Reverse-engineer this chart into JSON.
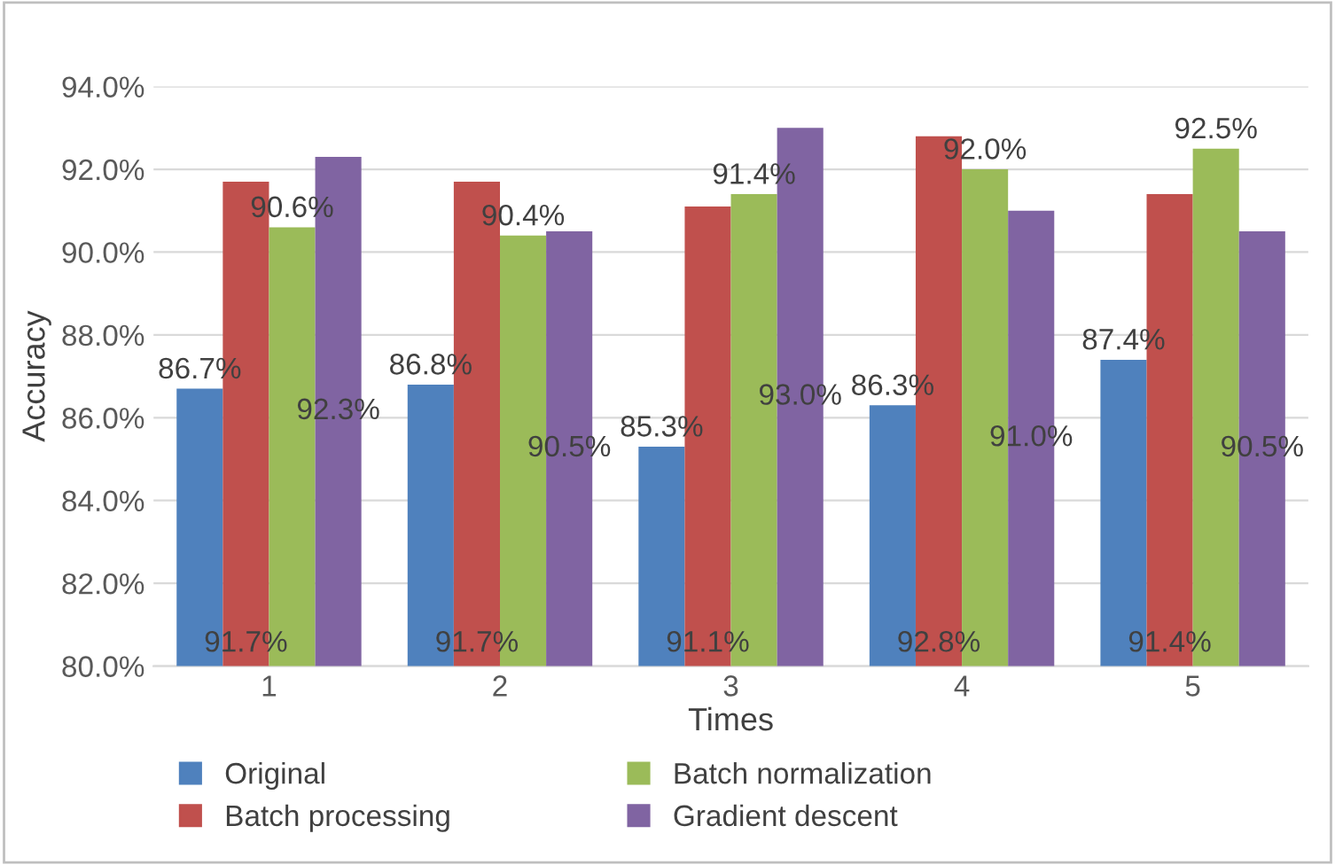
{
  "chart_data": {
    "type": "bar",
    "xlabel": "Times",
    "ylabel": "Accuracy",
    "categories": [
      "1",
      "2",
      "3",
      "4",
      "5"
    ],
    "series": [
      {
        "name": "Original",
        "color": "#4f81bd",
        "values": [
          86.7,
          86.8,
          85.3,
          86.3,
          87.4
        ],
        "value_labels": [
          "86.7%",
          "86.8%",
          "85.3%",
          "86.3%",
          "87.4%"
        ]
      },
      {
        "name": "Batch processing",
        "color": "#c0504d",
        "values": [
          91.7,
          91.7,
          91.1,
          92.8,
          91.4
        ],
        "value_labels": [
          "91.7%",
          "91.7%",
          "91.1%",
          "92.8%",
          "91.4%"
        ]
      },
      {
        "name": "Batch normalization",
        "color": "#9bbb59",
        "values": [
          90.6,
          90.4,
          91.4,
          92.0,
          92.5
        ],
        "value_labels": [
          "90.6%",
          "90.4%",
          "91.4%",
          "92.0%",
          "92.5%"
        ]
      },
      {
        "name": "Gradient descent",
        "color": "#8064a2",
        "values": [
          92.3,
          90.5,
          93.0,
          91.0,
          90.5
        ],
        "value_labels": [
          "92.3%",
          "90.5%",
          "93.0%",
          "91.0%",
          "90.5%"
        ]
      }
    ],
    "ylim": [
      80,
      94
    ],
    "yticks": [
      {
        "value": 80,
        "label": "80.0%"
      },
      {
        "value": 82,
        "label": "82.0%"
      },
      {
        "value": 84,
        "label": "84.0%"
      },
      {
        "value": 86,
        "label": "86.0%"
      },
      {
        "value": 88,
        "label": "88.0%"
      },
      {
        "value": 90,
        "label": "90.0%"
      },
      {
        "value": 92,
        "label": "92.0%"
      },
      {
        "value": 94,
        "label": "94.0%"
      }
    ],
    "grid": "y",
    "legend": "bottom"
  }
}
